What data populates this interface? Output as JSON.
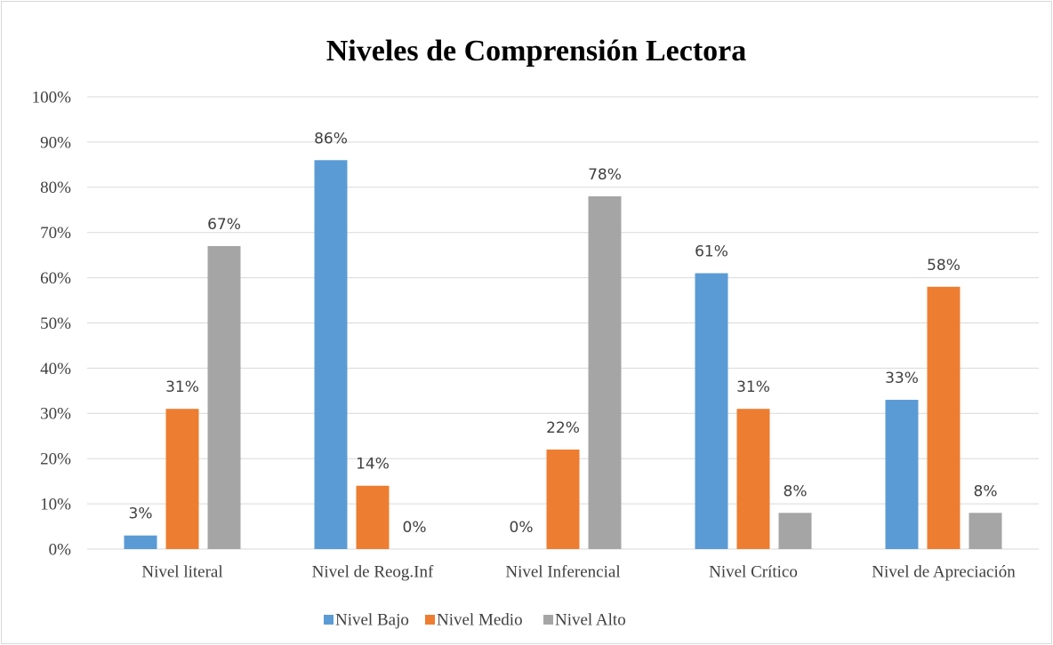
{
  "chart_data": {
    "type": "bar",
    "title": "Niveles de Comprensión Lectora",
    "categories": [
      "Nivel literal",
      "Nivel de Reog.Inf",
      "Nivel Inferencial",
      "Nivel Crítico",
      "Nivel de Apreciación"
    ],
    "series": [
      {
        "name": "Nivel Bajo",
        "color": "#5b9bd5",
        "values": [
          3,
          86,
          0,
          61,
          33
        ],
        "value_labels": [
          "3%",
          "86%",
          "0%",
          "61%",
          "33%"
        ]
      },
      {
        "name": "Nivel Medio",
        "color": "#ed7d31",
        "values": [
          31,
          14,
          22,
          31,
          58
        ],
        "value_labels": [
          "31%",
          "14%",
          "22%",
          "31%",
          "58%"
        ]
      },
      {
        "name": "Nivel Alto",
        "color": "#a5a5a5",
        "values": [
          67,
          0,
          78,
          8,
          8
        ],
        "value_labels": [
          "67%",
          "0%",
          "78%",
          "8%",
          "8%"
        ]
      }
    ],
    "ylim": [
      0,
      100
    ],
    "yticks": [
      {
        "value": 0,
        "label": "0%"
      },
      {
        "value": 10,
        "label": "10%"
      },
      {
        "value": 20,
        "label": "20%"
      },
      {
        "value": 30,
        "label": "30%"
      },
      {
        "value": 40,
        "label": "40%"
      },
      {
        "value": 50,
        "label": "50%"
      },
      {
        "value": 60,
        "label": "60%"
      },
      {
        "value": 70,
        "label": "70%"
      },
      {
        "value": 80,
        "label": "80%"
      },
      {
        "value": 90,
        "label": "90%"
      },
      {
        "value": 100,
        "label": "100%"
      }
    ],
    "grid": true,
    "legend": "bottom"
  }
}
